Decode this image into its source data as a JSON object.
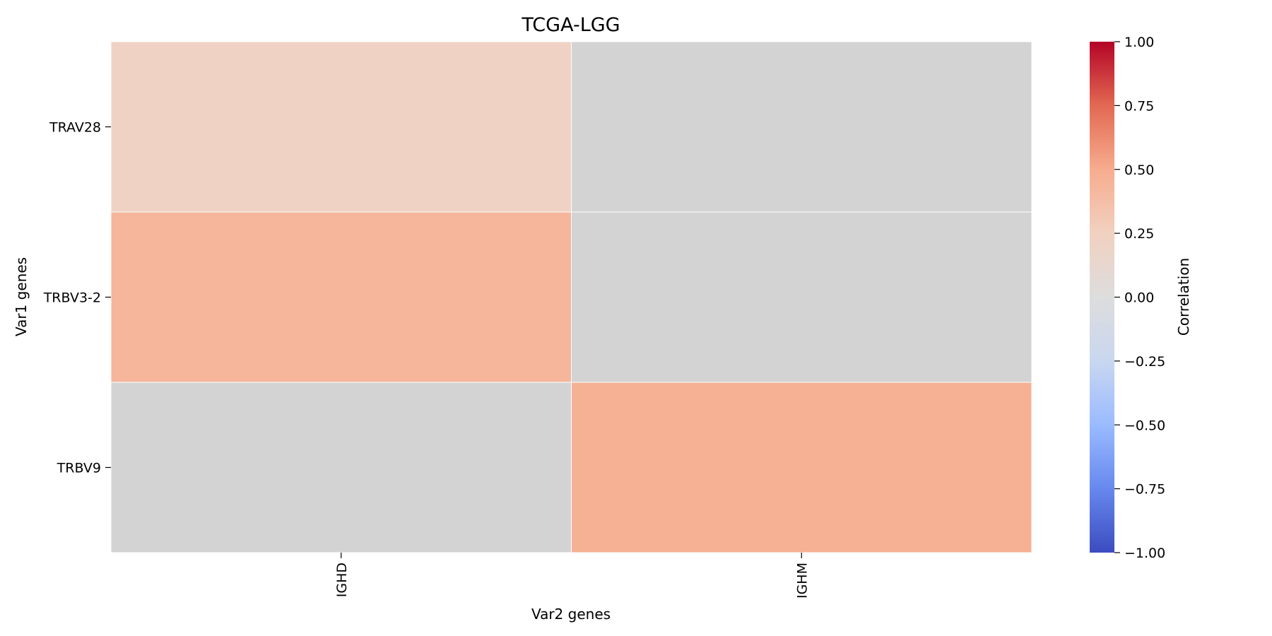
{
  "chart_data": {
    "type": "heatmap",
    "title": "TCGA-LGG",
    "xlabel": "Var2 genes",
    "ylabel": "Var1 genes",
    "x_categories": [
      "IGHD",
      "IGHM"
    ],
    "y_categories": [
      "TRAV28",
      "TRBV3-2",
      "TRBV9"
    ],
    "values": [
      [
        0.22,
        null
      ],
      [
        0.43,
        null
      ],
      [
        null,
        0.47
      ]
    ],
    "missing_color": "#d3d3d3",
    "colorbar": {
      "label": "Correlation",
      "range": [
        -1.0,
        1.0
      ],
      "ticks": [
        1.0,
        0.75,
        0.5,
        0.25,
        0.0,
        -0.25,
        -0.5,
        -0.75,
        -1.0
      ],
      "tick_labels": [
        "1.00",
        "0.75",
        "0.50",
        "0.25",
        "0.00",
        "−0.25",
        "−0.50",
        "−0.75",
        "−1.00"
      ],
      "colormap": "coolwarm",
      "colormap_stops": [
        "#3b4cc0",
        "#6788ee",
        "#9abbff",
        "#c9d7f0",
        "#dddddd",
        "#f1d1c0",
        "#f7ac8e",
        "#e26952",
        "#b40426"
      ]
    }
  }
}
